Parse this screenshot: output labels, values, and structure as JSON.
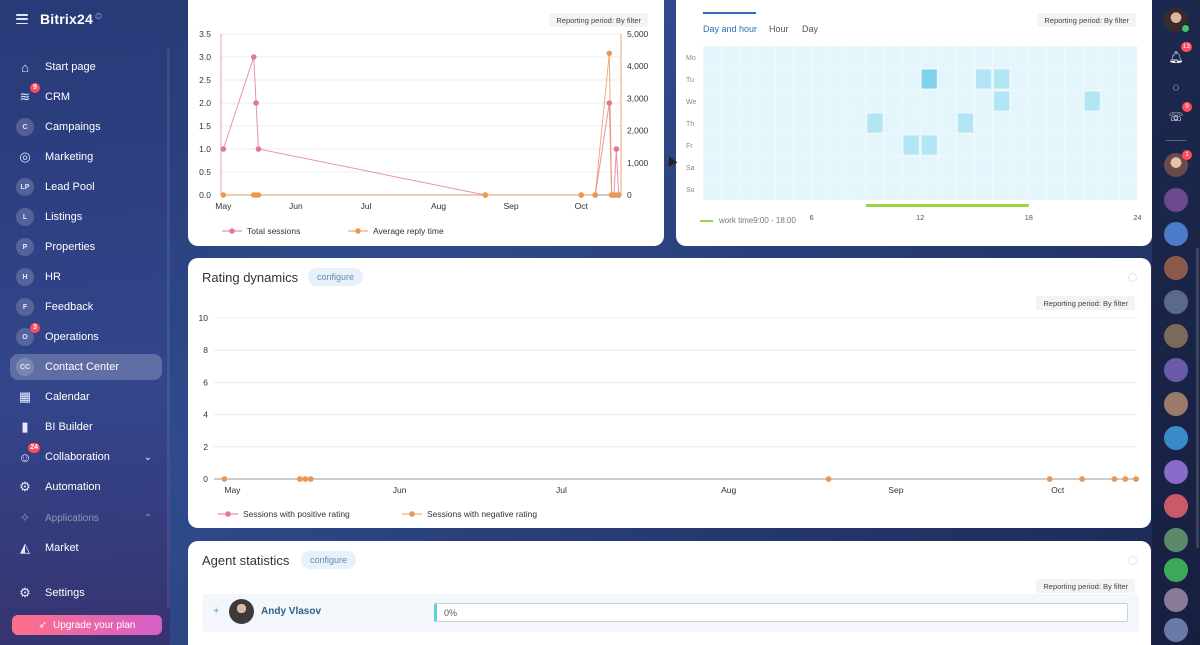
{
  "app": {
    "logo": "Bitrix24",
    "logo_suffix": "⏲"
  },
  "sidebar": {
    "items": [
      {
        "label": "Start page",
        "icon": "home-icon"
      },
      {
        "label": "CRM",
        "icon": "crm-funnel-icon",
        "badge": "9"
      },
      {
        "label": "Campaings",
        "icon_text": "C"
      },
      {
        "label": "Marketing",
        "icon": "marketing-target-icon"
      },
      {
        "label": "Lead Pool",
        "icon_text": "LP"
      },
      {
        "label": "Listings",
        "icon_text": "L"
      },
      {
        "label": "Properties",
        "icon_text": "P"
      },
      {
        "label": "HR",
        "icon_text": "H"
      },
      {
        "label": "Feedback",
        "icon_text": "F"
      },
      {
        "label": "Operations",
        "icon_text": "O",
        "badge": "3"
      },
      {
        "label": "Contact Center",
        "icon_text": "CC",
        "active": true
      },
      {
        "label": "Calendar",
        "icon": "calendar-icon"
      },
      {
        "label": "BI Builder",
        "icon": "bar-chart-icon"
      },
      {
        "label": "Collaboration",
        "icon": "collaboration-icon",
        "badge": "24"
      },
      {
        "label": "Automation",
        "icon": "automation-robot-icon"
      },
      {
        "label": "Applications",
        "icon": "applications-icon"
      },
      {
        "label": "Market",
        "icon": "market-icon"
      },
      {
        "label": "Settings",
        "icon": "settings-gear-icon"
      }
    ],
    "upgrade_label": "Upgrade your plan"
  },
  "sessions_card": {
    "report_tag": "Reporting period: By filter",
    "legend": [
      "Total sessions",
      "Average reply time"
    ],
    "colors": {
      "total": "#e07896",
      "reply": "#e89a55"
    }
  },
  "activity_card": {
    "report_tag": "Reporting period: By filter",
    "tabs": [
      "Day and hour",
      "Hour",
      "Day"
    ],
    "active_tab": "Day and hour",
    "days": [
      "Mo",
      "Tu",
      "We",
      "Th",
      "Fr",
      "Sa",
      "Su"
    ],
    "x_ticks": [
      "6",
      "12",
      "18",
      "24"
    ],
    "work_time_label": "work time9:00 - 18:00"
  },
  "rating_card": {
    "title": "Rating dynamics",
    "configure_label": "configure",
    "report_tag": "Reporting period: By filter",
    "legend": [
      "Sessions with positive rating",
      "Sessions with negative rating"
    ]
  },
  "agent_card": {
    "title": "Agent statistics",
    "configure_label": "configure",
    "report_tag": "Reporting period: By filter",
    "agents": [
      {
        "name": "Andy Vlasov",
        "percent": "0%"
      }
    ]
  },
  "rail": {
    "badges": {
      "notifications": "13",
      "chat": "9",
      "user": "1"
    }
  },
  "chart_data": [
    {
      "type": "line",
      "x_tick_labels": [
        "May",
        "Jun",
        "Jul",
        "Aug",
        "Sep",
        "Oct"
      ],
      "y_left_ticks": [
        "0.0",
        "0.5",
        "1.0",
        "1.5",
        "2.0",
        "2.5",
        "3.0",
        "3.5"
      ],
      "y_right_ticks": [
        "0",
        "1,000",
        "2,000",
        "3,000",
        "4,000",
        "5,000"
      ],
      "ylim_left": [
        0,
        3.5
      ],
      "ylim_right": [
        0,
        5000
      ],
      "x": [
        "05-01",
        "05-14",
        "05-15",
        "05-16",
        "08-21",
        "10-01",
        "10-07",
        "10-13",
        "10-14",
        "10-15",
        "10-16",
        "10-17"
      ],
      "series": [
        {
          "name": "Total sessions",
          "axis": "left",
          "values": [
            1.0,
            3.0,
            2.0,
            1.0,
            0.0,
            0.0,
            0.0,
            2.0,
            0.0,
            0.0,
            1.0,
            0.0
          ]
        },
        {
          "name": "Average reply time",
          "axis": "right",
          "values": [
            0,
            0,
            0,
            0,
            0,
            0,
            0,
            4400,
            0,
            0,
            0,
            0
          ]
        }
      ],
      "grid": true,
      "legend": "bottom"
    },
    {
      "type": "heatmap",
      "rows": [
        "Mo",
        "Tu",
        "We",
        "Th",
        "Fr",
        "Sa",
        "Su"
      ],
      "x_tick_labels": [
        "6",
        "12",
        "18",
        "24"
      ],
      "cells": [
        {
          "day": "Tu",
          "hour": 13
        },
        {
          "day": "Tu",
          "hour": 16
        },
        {
          "day": "Tu",
          "hour": 17
        },
        {
          "day": "We",
          "hour": 17
        },
        {
          "day": "We",
          "hour": 22
        },
        {
          "day": "Th",
          "hour": 10
        },
        {
          "day": "Th",
          "hour": 15
        },
        {
          "day": "Fr",
          "hour": 12
        },
        {
          "day": "Fr",
          "hour": 13
        }
      ],
      "highlight": {
        "day": "Tu",
        "hour": 13
      },
      "work_time": [
        9,
        18
      ]
    },
    {
      "type": "scatter",
      "x_tick_labels": [
        "May",
        "Jun",
        "Jul",
        "Aug",
        "Sep",
        "Oct"
      ],
      "y_ticks": [
        "0",
        "2",
        "4",
        "6",
        "8",
        "10"
      ],
      "ylim": [
        0,
        10
      ],
      "x": [
        "05-01",
        "05-15",
        "05-16",
        "05-17",
        "08-21",
        "10-01",
        "10-07",
        "10-13",
        "10-15",
        "10-17"
      ],
      "series": [
        {
          "name": "Sessions with positive rating",
          "values": [
            0,
            0,
            0,
            0,
            0,
            0,
            0,
            0,
            0,
            0
          ]
        },
        {
          "name": "Sessions with negative rating",
          "values": [
            0,
            0,
            0,
            0,
            0,
            0,
            0,
            0,
            0,
            0
          ]
        }
      ],
      "grid": true,
      "legend": "bottom"
    }
  ]
}
